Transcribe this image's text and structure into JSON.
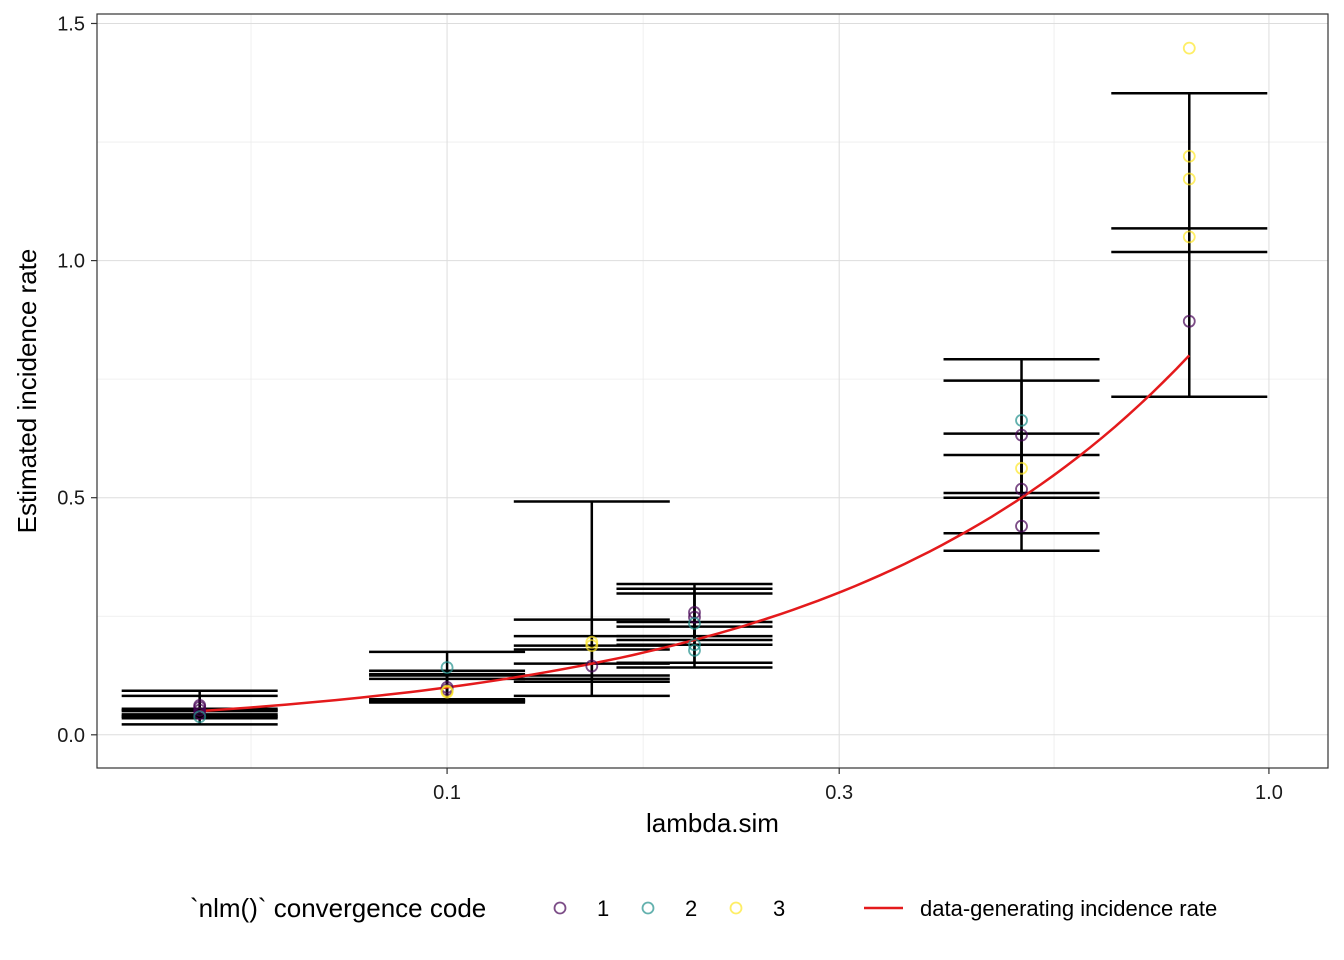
{
  "chart_data": {
    "type": "scatter",
    "xlabel": "lambda.sim",
    "ylabel": "Estimated incidence rate",
    "x_scale": "log10",
    "xlim": [
      0.0375,
      1.18
    ],
    "ylim": [
      -0.07,
      1.52
    ],
    "x_ticks": [
      0.1,
      0.3,
      1.0
    ],
    "x_tick_labels": [
      "0.1",
      "0.3",
      "1.0"
    ],
    "y_ticks": [
      0.0,
      0.5,
      1.0,
      1.5
    ],
    "y_tick_labels": [
      "0.0",
      "0.5",
      "1.0",
      "1.5"
    ],
    "grid": true,
    "legend_position": "bottom",
    "colors": {
      "code_1": "#440154",
      "code_2": "#21908C",
      "code_3": "#FDE725",
      "true_rate": "#E41A1C",
      "errorbar": "#000000",
      "panel_border": "#333333",
      "grid": "#dddddd"
    },
    "legend": {
      "title": "`nlm()` convergence code",
      "codes": [
        "1",
        "2",
        "3"
      ],
      "line_label": "data-generating incidence rate"
    },
    "points": [
      {
        "x": 0.05,
        "y": 0.062,
        "code": 1
      },
      {
        "x": 0.05,
        "y": 0.058,
        "code": 1
      },
      {
        "x": 0.05,
        "y": 0.052,
        "code": 1
      },
      {
        "x": 0.05,
        "y": 0.045,
        "code": 1
      },
      {
        "x": 0.05,
        "y": 0.038,
        "code": 2
      },
      {
        "x": 0.1,
        "y": 0.142,
        "code": 2
      },
      {
        "x": 0.1,
        "y": 0.1,
        "code": 1
      },
      {
        "x": 0.1,
        "y": 0.095,
        "code": 1
      },
      {
        "x": 0.1,
        "y": 0.09,
        "code": 3
      },
      {
        "x": 0.1,
        "y": 0.092,
        "code": 3
      },
      {
        "x": 0.15,
        "y": 0.195,
        "code": 3
      },
      {
        "x": 0.15,
        "y": 0.188,
        "code": 3
      },
      {
        "x": 0.15,
        "y": 0.145,
        "code": 1
      },
      {
        "x": 0.2,
        "y": 0.258,
        "code": 1
      },
      {
        "x": 0.2,
        "y": 0.248,
        "code": 1
      },
      {
        "x": 0.2,
        "y": 0.235,
        "code": 2
      },
      {
        "x": 0.2,
        "y": 0.19,
        "code": 2
      },
      {
        "x": 0.2,
        "y": 0.178,
        "code": 2
      },
      {
        "x": 0.5,
        "y": 0.663,
        "code": 2
      },
      {
        "x": 0.5,
        "y": 0.632,
        "code": 1
      },
      {
        "x": 0.5,
        "y": 0.562,
        "code": 3
      },
      {
        "x": 0.5,
        "y": 0.518,
        "code": 1
      },
      {
        "x": 0.5,
        "y": 0.44,
        "code": 1
      },
      {
        "x": 0.8,
        "y": 1.448,
        "code": 3
      },
      {
        "x": 0.8,
        "y": 1.22,
        "code": 3
      },
      {
        "x": 0.8,
        "y": 1.172,
        "code": 3
      },
      {
        "x": 0.8,
        "y": 1.05,
        "code": 3
      },
      {
        "x": 0.8,
        "y": 0.872,
        "code": 1
      }
    ],
    "errorbars": [
      {
        "x": 0.05,
        "lo": 0.022,
        "hi": 0.093
      },
      {
        "x": 0.05,
        "lo": 0.035,
        "hi": 0.082
      },
      {
        "x": 0.05,
        "lo": 0.04,
        "hi": 0.055
      },
      {
        "x": 0.05,
        "lo": 0.043,
        "hi": 0.05
      },
      {
        "x": 0.05,
        "lo": 0.038,
        "hi": 0.052
      },
      {
        "x": 0.1,
        "lo": 0.068,
        "hi": 0.175
      },
      {
        "x": 0.1,
        "lo": 0.072,
        "hi": 0.135
      },
      {
        "x": 0.1,
        "lo": 0.075,
        "hi": 0.128
      },
      {
        "x": 0.1,
        "lo": 0.07,
        "hi": 0.125
      },
      {
        "x": 0.1,
        "lo": 0.073,
        "hi": 0.118
      },
      {
        "x": 0.15,
        "lo": 0.082,
        "hi": 0.492
      },
      {
        "x": 0.15,
        "lo": 0.112,
        "hi": 0.243
      },
      {
        "x": 0.15,
        "lo": 0.118,
        "hi": 0.208
      },
      {
        "x": 0.15,
        "lo": 0.125,
        "hi": 0.188
      },
      {
        "x": 0.15,
        "lo": 0.15,
        "hi": 0.18
      },
      {
        "x": 0.2,
        "lo": 0.142,
        "hi": 0.318
      },
      {
        "x": 0.2,
        "lo": 0.152,
        "hi": 0.308
      },
      {
        "x": 0.2,
        "lo": 0.19,
        "hi": 0.298
      },
      {
        "x": 0.2,
        "lo": 0.2,
        "hi": 0.238
      },
      {
        "x": 0.2,
        "lo": 0.208,
        "hi": 0.228
      },
      {
        "x": 0.5,
        "lo": 0.388,
        "hi": 0.792
      },
      {
        "x": 0.5,
        "lo": 0.425,
        "hi": 0.747
      },
      {
        "x": 0.5,
        "lo": 0.5,
        "hi": 0.635
      },
      {
        "x": 0.5,
        "lo": 0.51,
        "hi": 0.59
      },
      {
        "x": 0.8,
        "lo": 0.713,
        "hi": 1.353
      },
      {
        "x": 0.8,
        "lo": 1.018,
        "hi": 1.068
      }
    ],
    "true_rate_line": {
      "x_from": 0.05,
      "x_to": 0.8
    }
  }
}
